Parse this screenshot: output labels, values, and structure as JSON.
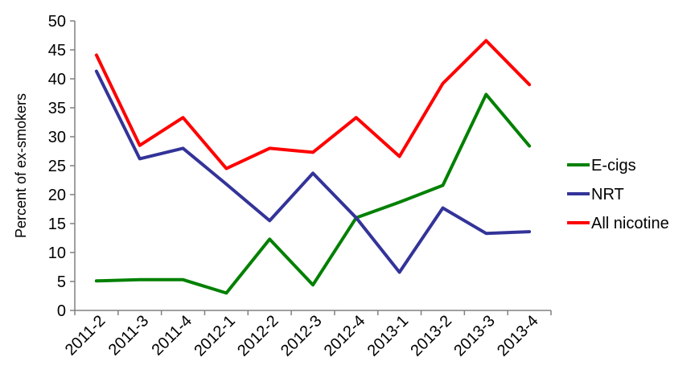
{
  "chart_data": {
    "type": "line",
    "title": "",
    "xlabel": "",
    "ylabel": "Percent of ex-smokers",
    "ylim": [
      0,
      50
    ],
    "yticks": [
      0,
      5,
      10,
      15,
      20,
      25,
      30,
      35,
      40,
      45,
      50
    ],
    "grid": false,
    "legend_position": "right",
    "categories": [
      "2011-2",
      "2011-3",
      "2011-4",
      "2012-1",
      "2012-2",
      "2012-3",
      "2012-4",
      "2013-1",
      "2013-2",
      "2013-3",
      "2013-4"
    ],
    "series": [
      {
        "name": "E-cigs",
        "color": "#008000",
        "values": [
          5.1,
          5.3,
          5.3,
          3.0,
          12.3,
          4.4,
          16.0,
          18.7,
          21.6,
          37.3,
          28.4
        ]
      },
      {
        "name": "NRT",
        "color": "#333399",
        "values": [
          41.3,
          26.2,
          28.0,
          21.8,
          15.5,
          23.7,
          16.0,
          6.6,
          17.7,
          13.3,
          13.6
        ]
      },
      {
        "name": "All nicotine",
        "color": "#ff0000",
        "values": [
          44.1,
          28.5,
          33.3,
          24.5,
          28.0,
          27.3,
          33.3,
          26.6,
          39.2,
          46.6,
          39.0
        ]
      }
    ]
  }
}
